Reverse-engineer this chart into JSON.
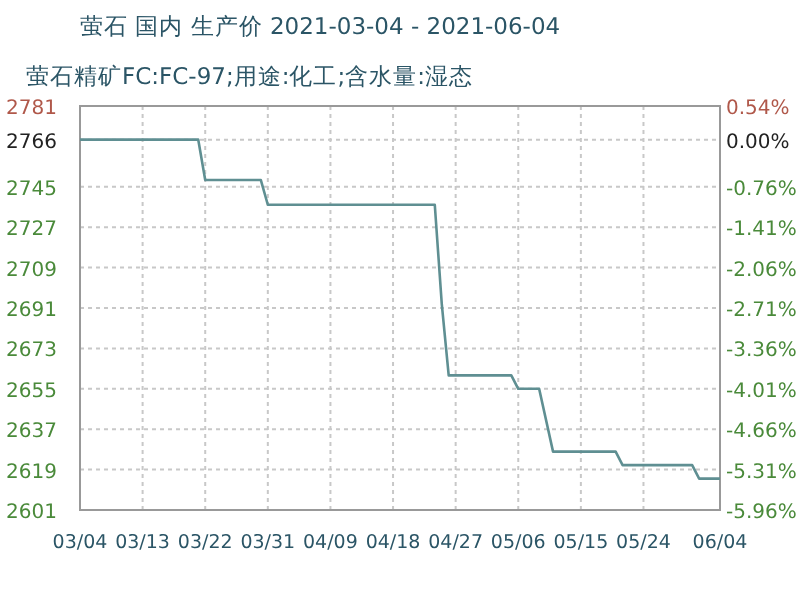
{
  "chart_data": {
    "type": "line",
    "title": "萤石 国内 生产价 2021-03-04 - 2021-06-04",
    "subtitle": "萤石精矿FC:FC-97;用途:化工;含水量:湿态",
    "x": [
      "2021-03-04",
      "2021-03-21",
      "2021-03-22",
      "2021-03-30",
      "2021-03-31",
      "2021-04-24",
      "2021-04-25",
      "2021-04-26",
      "2021-05-05",
      "2021-05-06",
      "2021-05-09",
      "2021-05-11",
      "2021-05-20",
      "2021-05-21",
      "2021-05-31",
      "2021-06-01",
      "2021-06-04"
    ],
    "series": [
      {
        "color": "#5f8f92",
        "values": [
          2766,
          2766,
          2748,
          2748,
          2737,
          2737,
          2693,
          2661,
          2661,
          2655,
          2655,
          2627,
          2627,
          2621,
          2621,
          2615,
          2615
        ]
      }
    ],
    "xlim": [
      "2021-03-04",
      "2021-06-04"
    ],
    "xticks": [
      {
        "value": "2021-03-04",
        "label": "03/04"
      },
      {
        "value": "2021-03-13",
        "label": "03/13"
      },
      {
        "value": "2021-03-22",
        "label": "03/22"
      },
      {
        "value": "2021-03-31",
        "label": "03/31"
      },
      {
        "value": "2021-04-09",
        "label": "04/09"
      },
      {
        "value": "2021-04-18",
        "label": "04/18"
      },
      {
        "value": "2021-04-27",
        "label": "04/27"
      },
      {
        "value": "2021-05-06",
        "label": "05/06"
      },
      {
        "value": "2021-05-15",
        "label": "05/15"
      },
      {
        "value": "2021-05-24",
        "label": "05/24"
      },
      {
        "value": "2021-06-04",
        "label": "06/04"
      }
    ],
    "ylim": [
      2601,
      2781
    ],
    "yticks": [
      2601,
      2619,
      2637,
      2655,
      2673,
      2691,
      2709,
      2727,
      2745,
      2766,
      2781
    ],
    "y2lim": [
      -5.96,
      0.54
    ],
    "y2ticks": [
      {
        "value": -5.96,
        "label": "-5.96%"
      },
      {
        "value": -5.31,
        "label": "-5.31%"
      },
      {
        "value": -4.66,
        "label": "-4.66%"
      },
      {
        "value": -4.01,
        "label": "-4.01%"
      },
      {
        "value": -3.36,
        "label": "-3.36%"
      },
      {
        "value": -2.71,
        "label": "-2.71%"
      },
      {
        "value": -2.06,
        "label": "-2.06%"
      },
      {
        "value": -1.41,
        "label": "-1.41%"
      },
      {
        "value": -0.76,
        "label": "-0.76%"
      },
      {
        "value": 0,
        "label": "0.00%"
      },
      {
        "value": 0.54,
        "label": "0.54%"
      }
    ],
    "grid": true,
    "line_style": "solid"
  }
}
